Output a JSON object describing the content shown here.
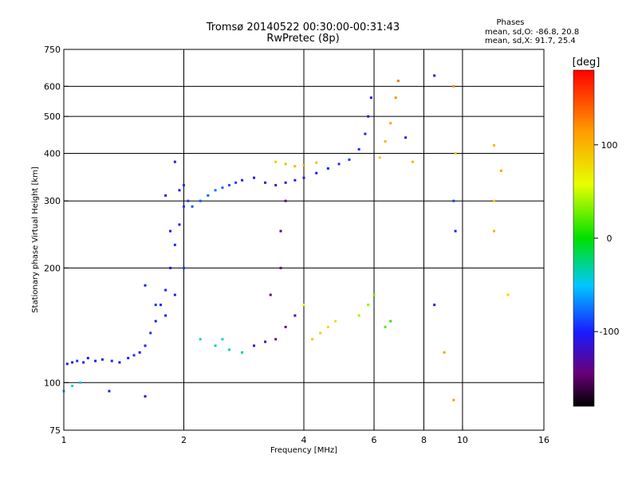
{
  "chart_data": {
    "type": "scatter",
    "title": "Tromsø 20140522 00:30:00-00:31:43",
    "subtitle": "RwPretec (8p)",
    "xlabel": "Frequency [MHz]",
    "ylabel": "Stationary phase Virtual Height [km]",
    "x_scale": "log",
    "y_scale": "log",
    "xlim": [
      1,
      16
    ],
    "ylim": [
      75,
      750
    ],
    "x_ticks": [
      1,
      2,
      4,
      6,
      8,
      10,
      16
    ],
    "y_ticks": [
      75,
      100,
      200,
      300,
      400,
      500,
      600,
      750
    ],
    "grid": true,
    "phase_stats": {
      "heading": "Phases",
      "line_o": "mean, sd,O: -86.8, 20.8",
      "line_x": "mean, sd,X:  91.7, 25.4"
    },
    "colorbar": {
      "label": "[deg]",
      "range": [
        -180,
        180
      ],
      "ticks": [
        100,
        0,
        -100
      ],
      "colormap": "rainbow (black-purple-blue-cyan-green-yellow-orange-red)"
    },
    "series": [
      {
        "points": [
          [
            1.02,
            112,
            -105
          ],
          [
            1.05,
            113,
            -110
          ],
          [
            1.08,
            114,
            -95
          ],
          [
            1.12,
            113,
            -100
          ],
          [
            1.15,
            116,
            -108
          ],
          [
            1.2,
            114,
            -102
          ],
          [
            1.25,
            115,
            -110
          ],
          [
            1.32,
            114,
            -98
          ],
          [
            1.38,
            113,
            -105
          ],
          [
            1.45,
            116,
            -100
          ],
          [
            1.5,
            118,
            -95
          ],
          [
            1.55,
            120,
            -108
          ],
          [
            1.6,
            125,
            -100
          ],
          [
            1.65,
            135,
            -95
          ],
          [
            1.7,
            145,
            -105
          ],
          [
            1.75,
            160,
            -100
          ],
          [
            1.8,
            175,
            -98
          ],
          [
            1.85,
            200,
            -102
          ],
          [
            1.9,
            230,
            -95
          ],
          [
            1.95,
            260,
            -100
          ],
          [
            2.0,
            290,
            -92
          ],
          [
            2.05,
            300,
            -88
          ],
          [
            2.1,
            290,
            -85
          ],
          [
            2.2,
            300,
            -82
          ],
          [
            2.3,
            310,
            -80
          ],
          [
            2.4,
            320,
            -75
          ],
          [
            2.5,
            325,
            -78
          ],
          [
            2.6,
            330,
            -85
          ],
          [
            2.7,
            335,
            -90
          ],
          [
            2.8,
            340,
            -100
          ],
          [
            3.0,
            345,
            -110
          ],
          [
            3.2,
            335,
            -120
          ],
          [
            3.4,
            330,
            -125
          ],
          [
            3.6,
            335,
            -118
          ],
          [
            3.8,
            340,
            -110
          ],
          [
            4.0,
            345,
            -105
          ],
          [
            4.3,
            355,
            -100
          ],
          [
            4.6,
            365,
            -98
          ],
          [
            4.9,
            375,
            -95
          ],
          [
            5.2,
            385,
            -92
          ],
          [
            5.5,
            410,
            -95
          ],
          [
            5.7,
            450,
            -98
          ],
          [
            5.8,
            500,
            -100
          ],
          [
            5.9,
            560,
            -102
          ],
          [
            6.2,
            390,
            90
          ],
          [
            6.4,
            430,
            100
          ],
          [
            6.6,
            480,
            110
          ],
          [
            6.8,
            560,
            120
          ],
          [
            6.9,
            620,
            130
          ],
          [
            3.4,
            380,
            90
          ],
          [
            3.6,
            375,
            95
          ],
          [
            3.8,
            370,
            100
          ],
          [
            4.0,
            372,
            105
          ],
          [
            4.3,
            378,
            95
          ],
          [
            1.6,
            180,
            -100
          ],
          [
            1.7,
            160,
            -95
          ],
          [
            1.8,
            150,
            -105
          ],
          [
            1.9,
            170,
            -100
          ],
          [
            2.0,
            200,
            -90
          ],
          [
            1.85,
            250,
            -100
          ],
          [
            1.95,
            320,
            -105
          ],
          [
            1.9,
            380,
            -110
          ],
          [
            2.0,
            330,
            -95
          ],
          [
            1.8,
            310,
            -100
          ],
          [
            2.2,
            130,
            -50
          ],
          [
            2.4,
            125,
            -40
          ],
          [
            2.6,
            122,
            -35
          ],
          [
            2.8,
            120,
            -30
          ],
          [
            2.5,
            130,
            -45
          ],
          [
            3.0,
            125,
            -125
          ],
          [
            3.2,
            128,
            -130
          ],
          [
            3.4,
            130,
            -135
          ],
          [
            3.6,
            140,
            -140
          ],
          [
            3.8,
            150,
            -130
          ],
          [
            3.5,
            200,
            -145
          ],
          [
            3.5,
            250,
            -140
          ],
          [
            3.6,
            300,
            -135
          ],
          [
            3.3,
            170,
            -140
          ],
          [
            4.2,
            130,
            90
          ],
          [
            4.4,
            135,
            85
          ],
          [
            4.6,
            140,
            80
          ],
          [
            4.8,
            145,
            75
          ],
          [
            4.0,
            160,
            60
          ],
          [
            5.5,
            150,
            40
          ],
          [
            5.8,
            160,
            35
          ],
          [
            6.0,
            170,
            30
          ],
          [
            6.4,
            140,
            20
          ],
          [
            6.6,
            145,
            10
          ],
          [
            1.0,
            95,
            -50
          ],
          [
            1.05,
            98,
            -40
          ],
          [
            1.1,
            100,
            -45
          ],
          [
            1.3,
            95,
            -100
          ],
          [
            1.6,
            92,
            -110
          ],
          [
            8.5,
            640,
            -120
          ],
          [
            9.5,
            600,
            120
          ],
          [
            9.6,
            400,
            90
          ],
          [
            9.5,
            300,
            -90
          ],
          [
            9.6,
            250,
            -100
          ],
          [
            12,
            420,
            100
          ],
          [
            12.5,
            360,
            110
          ],
          [
            12,
            300,
            90
          ],
          [
            12,
            250,
            100
          ],
          [
            13,
            170,
            80
          ],
          [
            7.2,
            440,
            -100
          ],
          [
            7.5,
            380,
            100
          ],
          [
            8.5,
            160,
            -110
          ],
          [
            9,
            120,
            110
          ],
          [
            9.5,
            90,
            115
          ]
        ]
      }
    ]
  }
}
